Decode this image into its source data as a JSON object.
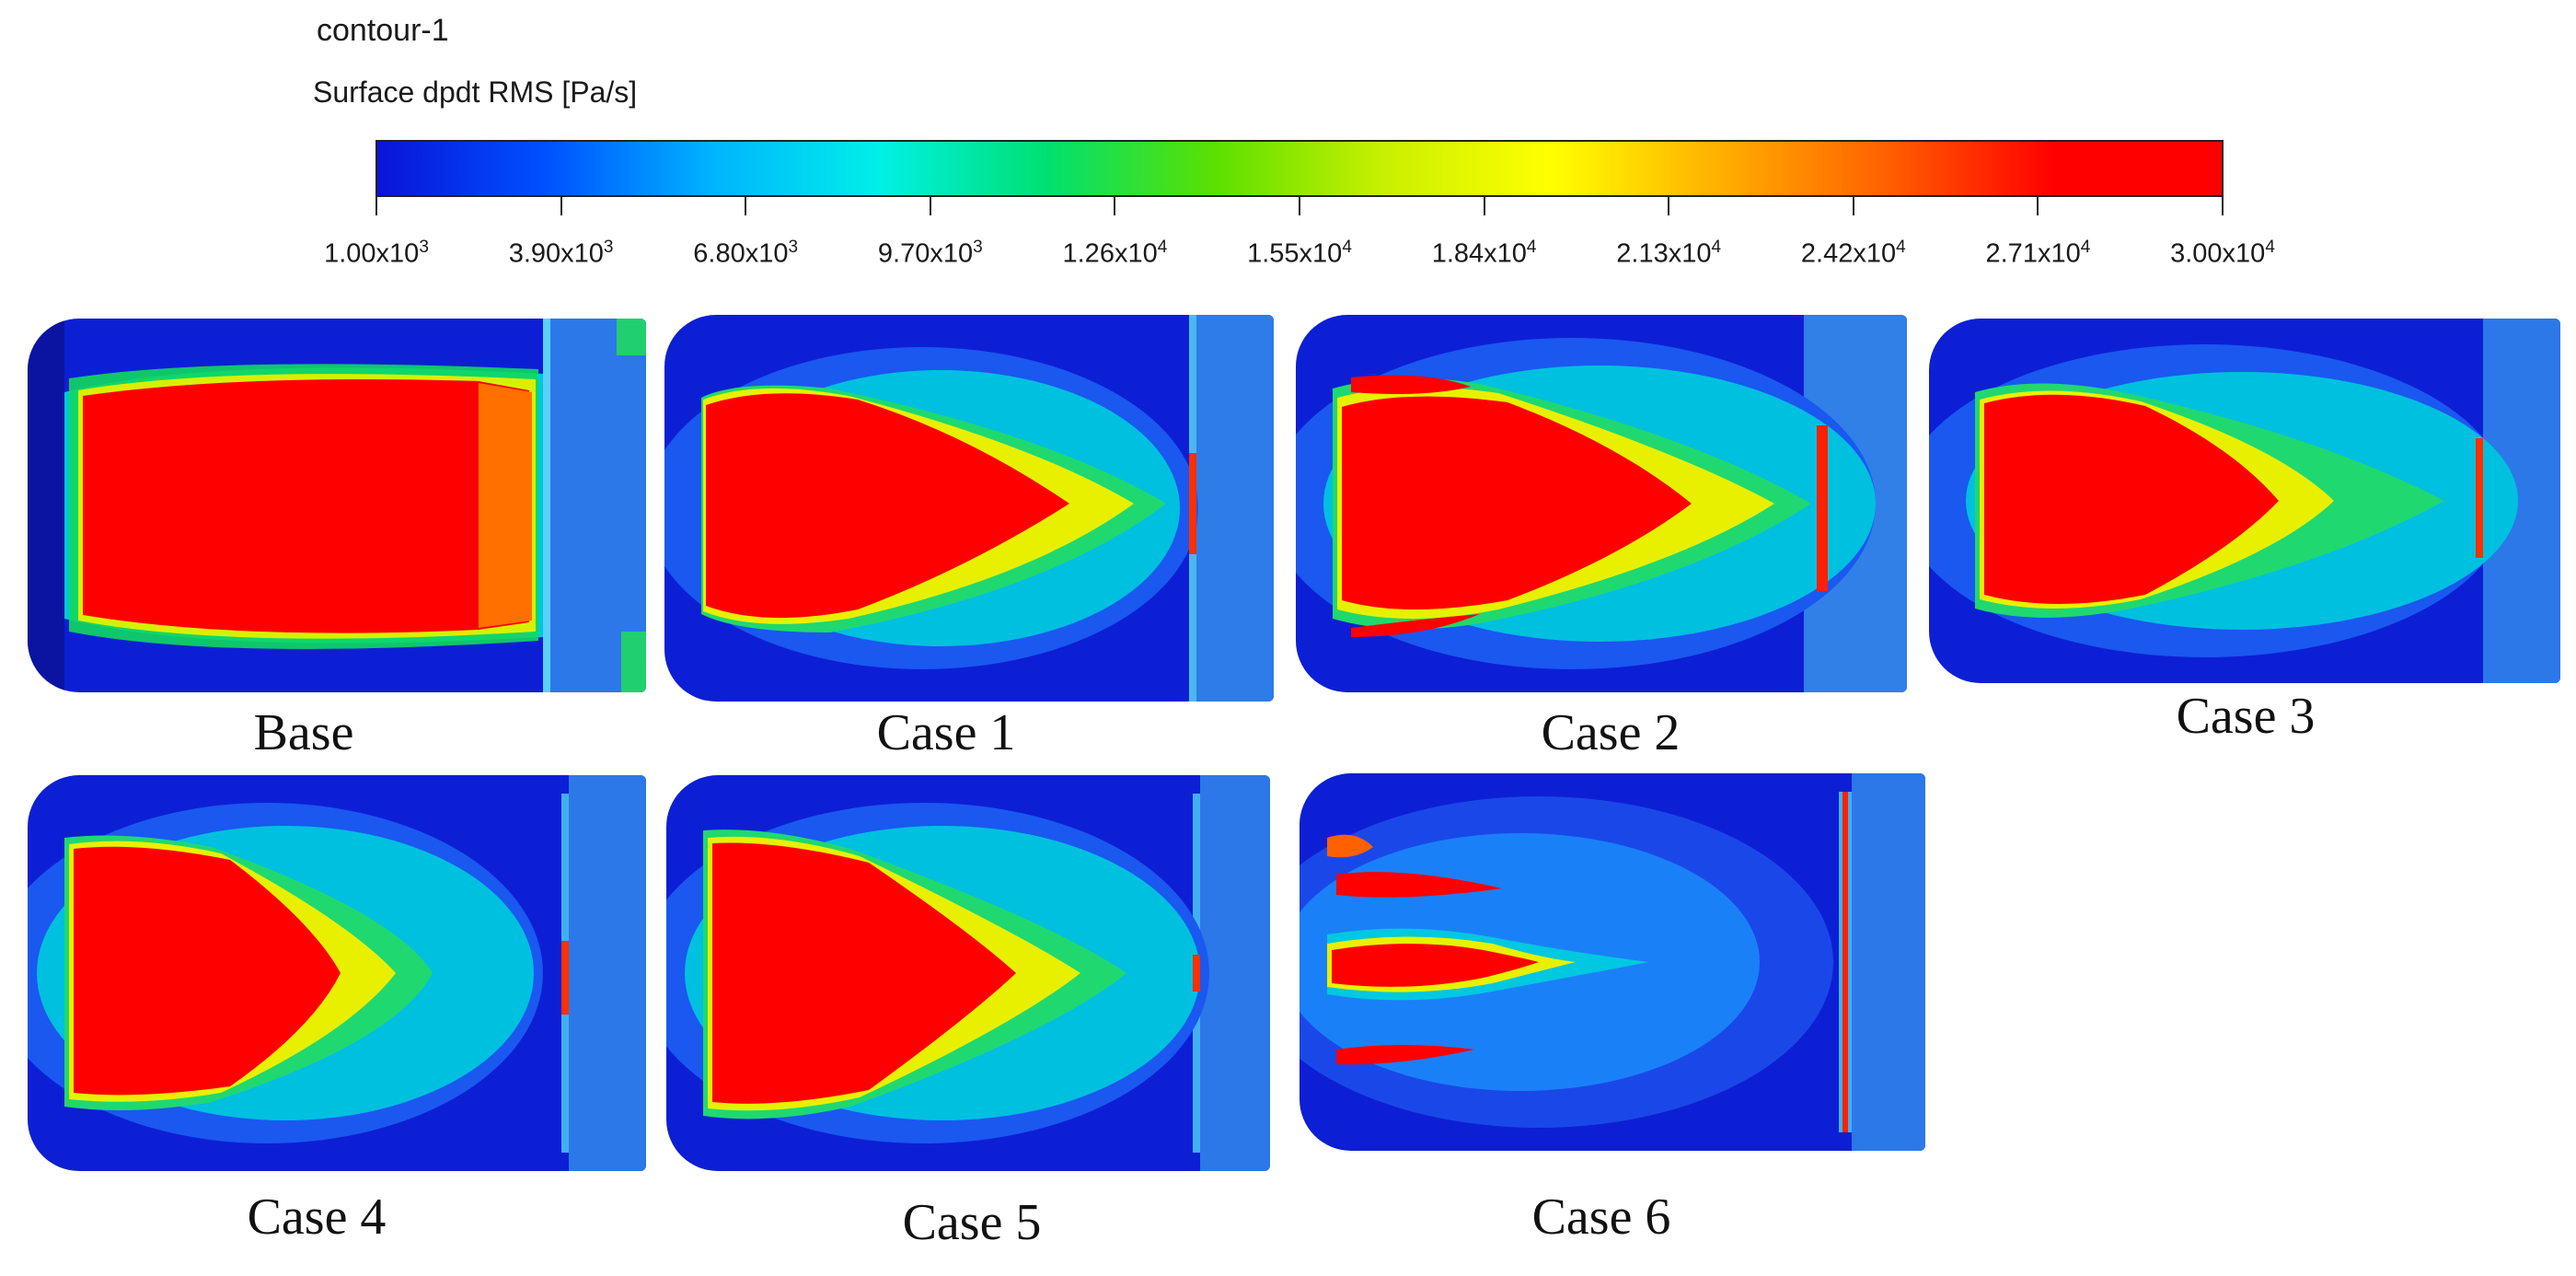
{
  "legend": {
    "title": "contour-1",
    "variable": "Surface dpdt RMS [Pa/s]",
    "gradient_colors": [
      "#0a14d8",
      "#0050ff",
      "#00b4ff",
      "#00f0e6",
      "#00e070",
      "#5ce000",
      "#c8f000",
      "#ffff00",
      "#ffb000",
      "#ff6000",
      "#ff0000",
      "#ff0000"
    ],
    "ticks": [
      {
        "mantissa": "1.00x10",
        "exp": "3"
      },
      {
        "mantissa": "3.90x10",
        "exp": "3"
      },
      {
        "mantissa": "6.80x10",
        "exp": "3"
      },
      {
        "mantissa": "9.70x10",
        "exp": "3"
      },
      {
        "mantissa": "1.26x10",
        "exp": "4"
      },
      {
        "mantissa": "1.55x10",
        "exp": "4"
      },
      {
        "mantissa": "1.84x10",
        "exp": "4"
      },
      {
        "mantissa": "2.13x10",
        "exp": "4"
      },
      {
        "mantissa": "2.42x10",
        "exp": "4"
      },
      {
        "mantissa": "2.71x10",
        "exp": "4"
      },
      {
        "mantissa": "3.00x10",
        "exp": "4"
      }
    ]
  },
  "cases": [
    {
      "label": "Base"
    },
    {
      "label": "Case 1"
    },
    {
      "label": "Case 2"
    },
    {
      "label": "Case 3"
    },
    {
      "label": "Case 4"
    },
    {
      "label": "Case 5"
    },
    {
      "label": "Case 6"
    }
  ],
  "colors": {
    "low": "#0a20d8",
    "mid": "#00d8e8",
    "green": "#1ee060",
    "yellow": "#f0f000",
    "high": "#ff0000"
  }
}
